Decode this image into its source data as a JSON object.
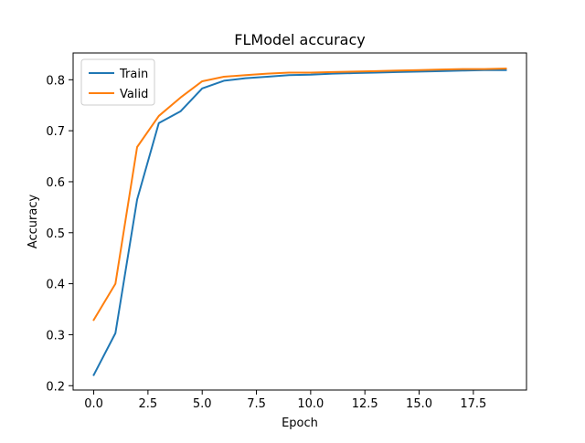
{
  "chart_data": {
    "type": "line",
    "title": "FLModel accuracy",
    "xlabel": "Epoch",
    "ylabel": "Accuracy",
    "xlim": [
      -0.95,
      19.95
    ],
    "ylim": [
      0.1915,
      0.8525
    ],
    "xticks": [
      0.0,
      2.5,
      5.0,
      7.5,
      10.0,
      12.5,
      15.0,
      17.5
    ],
    "xtick_labels": [
      "0.0",
      "2.5",
      "5.0",
      "7.5",
      "10.0",
      "12.5",
      "15.0",
      "17.5"
    ],
    "yticks": [
      0.2,
      0.3,
      0.4,
      0.5,
      0.6,
      0.7,
      0.8
    ],
    "ytick_labels": [
      "0.2",
      "0.3",
      "0.4",
      "0.5",
      "0.6",
      "0.7",
      "0.8"
    ],
    "grid": false,
    "legend_position": "upper-left",
    "x": [
      0,
      1,
      2,
      3,
      4,
      5,
      6,
      7,
      8,
      9,
      10,
      11,
      12,
      13,
      14,
      15,
      16,
      17,
      18,
      19
    ],
    "series": [
      {
        "name": "Train",
        "color": "#1f77b4",
        "values": [
          0.221,
          0.303,
          0.565,
          0.715,
          0.738,
          0.783,
          0.798,
          0.803,
          0.806,
          0.809,
          0.81,
          0.812,
          0.813,
          0.814,
          0.815,
          0.816,
          0.817,
          0.818,
          0.819,
          0.819
        ]
      },
      {
        "name": "Valid",
        "color": "#ff7f0e",
        "values": [
          0.329,
          0.4,
          0.668,
          0.729,
          0.765,
          0.797,
          0.806,
          0.809,
          0.812,
          0.814,
          0.814,
          0.815,
          0.816,
          0.817,
          0.818,
          0.819,
          0.82,
          0.821,
          0.821,
          0.822
        ]
      }
    ]
  }
}
